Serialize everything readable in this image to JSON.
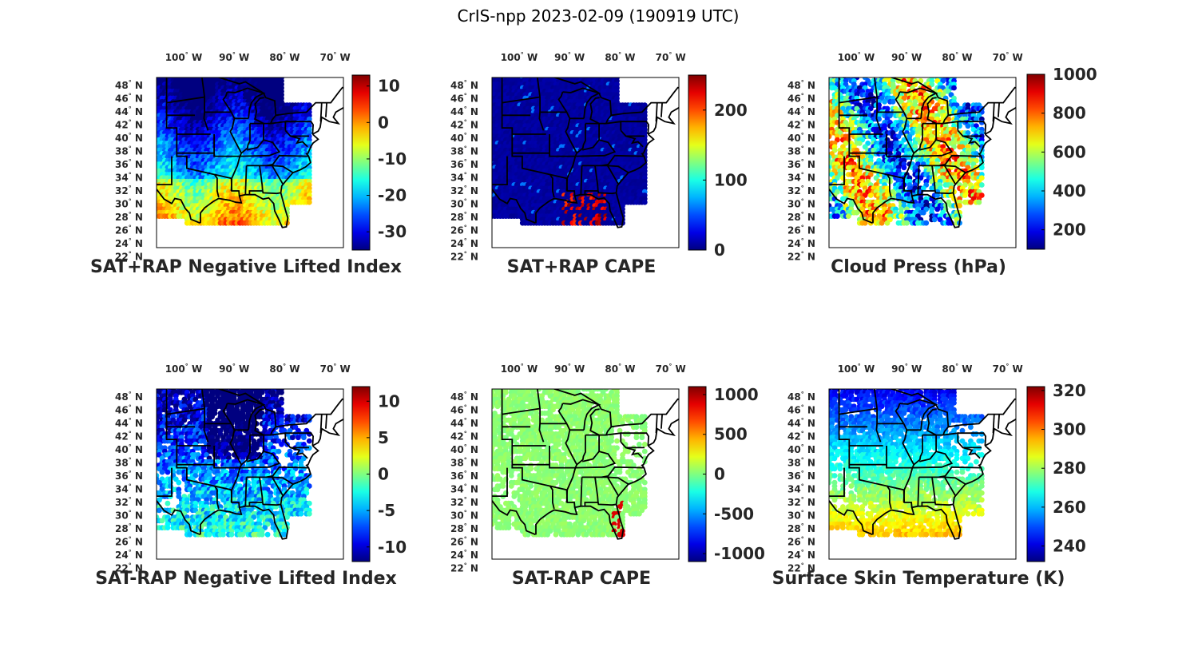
{
  "figure_title": "CrIS-npp 2023-02-09 (190919 UTC)",
  "lon_labels": [
    {
      "deg": "100",
      "dir": "W"
    },
    {
      "deg": "90",
      "dir": "W"
    },
    {
      "deg": "80",
      "dir": "W"
    },
    {
      "deg": "70",
      "dir": "W"
    }
  ],
  "lat_labels": [
    {
      "deg": "48",
      "dir": "N"
    },
    {
      "deg": "46",
      "dir": "N"
    },
    {
      "deg": "44",
      "dir": "N"
    },
    {
      "deg": "42",
      "dir": "N"
    },
    {
      "deg": "40",
      "dir": "N"
    },
    {
      "deg": "38",
      "dir": "N"
    },
    {
      "deg": "36",
      "dir": "N"
    },
    {
      "deg": "34",
      "dir": "N"
    },
    {
      "deg": "32",
      "dir": "N"
    },
    {
      "deg": "30",
      "dir": "N"
    },
    {
      "deg": "28",
      "dir": "N"
    },
    {
      "deg": "26",
      "dir": "N"
    },
    {
      "deg": "24",
      "dir": "N"
    },
    {
      "deg": "22",
      "dir": "N"
    }
  ],
  "colors": {
    "colormap": "jet",
    "border": "#000000",
    "text": "#262626"
  },
  "chart_data": [
    {
      "type": "scatter-map",
      "title": "SAT+RAP Negative Lifted Index",
      "colorbar": {
        "range": [
          -35,
          13
        ],
        "ticks": [
          "10",
          "0",
          "-10",
          "-20",
          "-30"
        ],
        "tick_values": [
          10,
          0,
          -10,
          -20,
          -30
        ]
      },
      "field": "nli",
      "lon_range": [
        -106,
        -69
      ],
      "lat_range": [
        22,
        49
      ]
    },
    {
      "type": "scatter-map",
      "title": "SAT+RAP CAPE",
      "colorbar": {
        "range": [
          0,
          250
        ],
        "ticks": [
          "200",
          "100",
          "0"
        ],
        "tick_values": [
          200,
          100,
          0
        ]
      },
      "field": "cape",
      "lon_range": [
        -106,
        -69
      ],
      "lat_range": [
        22,
        49
      ]
    },
    {
      "type": "scatter-map",
      "title": "Cloud Press (hPa)",
      "colorbar": {
        "range": [
          100,
          1000
        ],
        "ticks": [
          "1000",
          "800",
          "600",
          "400",
          "200"
        ],
        "tick_values": [
          1000,
          800,
          600,
          400,
          200
        ]
      },
      "field": "cloud",
      "lon_range": [
        -106,
        -69
      ],
      "lat_range": [
        22,
        49
      ]
    },
    {
      "type": "scatter-map",
      "title": "SAT-RAP Negative Lifted Index",
      "colorbar": {
        "range": [
          -12,
          12
        ],
        "ticks": [
          "10",
          "5",
          "0",
          "-5",
          "-10"
        ],
        "tick_values": [
          10,
          5,
          0,
          -5,
          -10
        ]
      },
      "field": "dnli",
      "lon_range": [
        -106,
        -69
      ],
      "lat_range": [
        22,
        49
      ]
    },
    {
      "type": "scatter-map",
      "title": "SAT-RAP CAPE",
      "colorbar": {
        "range": [
          -1100,
          1100
        ],
        "ticks": [
          "1000",
          "500",
          "0",
          "-500",
          "-1000"
        ],
        "tick_values": [
          1000,
          500,
          0,
          -500,
          -1000
        ]
      },
      "field": "dcape",
      "lon_range": [
        -106,
        -69
      ],
      "lat_range": [
        22,
        49
      ]
    },
    {
      "type": "scatter-map",
      "title": "Surface Skin Temperature (K)",
      "colorbar": {
        "range": [
          232,
          322
        ],
        "ticks": [
          "320",
          "300",
          "280",
          "260",
          "240"
        ],
        "tick_values": [
          320,
          300,
          280,
          260,
          240
        ]
      },
      "field": "skin",
      "lon_range": [
        -106,
        -69
      ],
      "lat_range": [
        22,
        49
      ]
    }
  ]
}
